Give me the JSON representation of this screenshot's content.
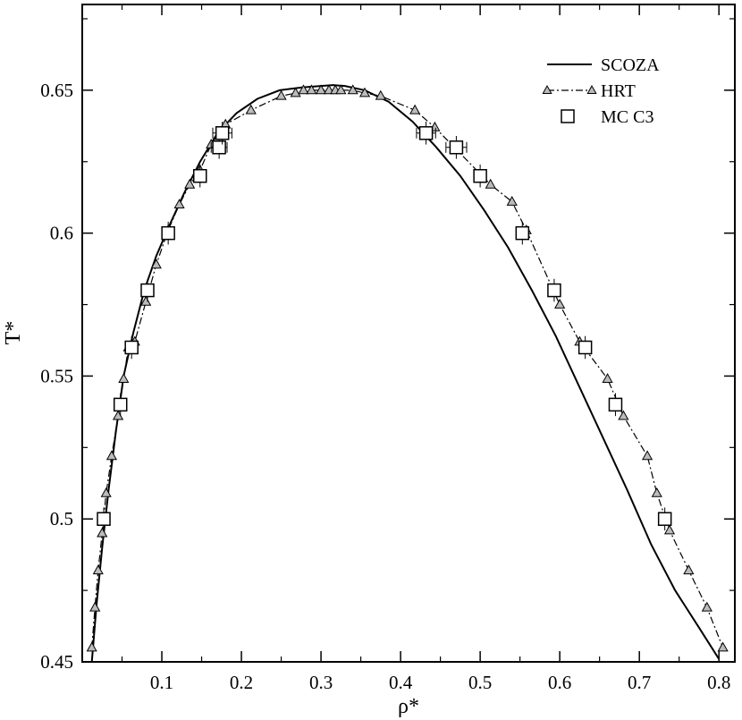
{
  "chart_data": {
    "type": "line",
    "title": "",
    "xlabel": "ρ*",
    "ylabel": "T*",
    "xlim": [
      0.0,
      0.82
    ],
    "ylim": [
      0.45,
      0.68
    ],
    "x_ticks": [
      0.1,
      0.2,
      0.3,
      0.4,
      0.5,
      0.6,
      0.7,
      0.8
    ],
    "x_tick_labels": [
      "0.1",
      "0.2",
      "0.3",
      "0.4",
      "0.5",
      "0.6",
      "0.7",
      "0.8"
    ],
    "y_ticks": [
      0.45,
      0.5,
      0.55,
      0.6,
      0.65
    ],
    "y_tick_labels": [
      "0.45",
      "0.5",
      "0.55",
      "0.6",
      "0.65"
    ],
    "grid": false,
    "legend_position": "top-right",
    "series": [
      {
        "name": "SCOZA",
        "style": "solid-line",
        "x": [
          0.012,
          0.018,
          0.025,
          0.033,
          0.042,
          0.052,
          0.064,
          0.078,
          0.093,
          0.11,
          0.128,
          0.148,
          0.17,
          0.194,
          0.22,
          0.248,
          0.276,
          0.3,
          0.315,
          0.33,
          0.355,
          0.385,
          0.415,
          0.445,
          0.475,
          0.505,
          0.535,
          0.565,
          0.595,
          0.625,
          0.655,
          0.685,
          0.715,
          0.745,
          0.775,
          0.8
        ],
        "y": [
          0.45,
          0.47,
          0.49,
          0.51,
          0.53,
          0.55,
          0.565,
          0.58,
          0.592,
          0.603,
          0.614,
          0.625,
          0.635,
          0.642,
          0.647,
          0.65,
          0.651,
          0.6515,
          0.6518,
          0.6515,
          0.65,
          0.646,
          0.639,
          0.63,
          0.62,
          0.608,
          0.595,
          0.58,
          0.564,
          0.546,
          0.528,
          0.51,
          0.491,
          0.475,
          0.462,
          0.451
        ]
      },
      {
        "name": "HRT",
        "style": "dash-dot-triangles",
        "x": [
          0.012,
          0.016,
          0.02,
          0.025,
          0.03,
          0.037,
          0.045,
          0.052,
          0.058,
          0.066,
          0.08,
          0.093,
          0.108,
          0.122,
          0.135,
          0.148,
          0.162,
          0.18,
          0.212,
          0.25,
          0.268,
          0.278,
          0.288,
          0.3,
          0.31,
          0.318,
          0.325,
          0.34,
          0.355,
          0.375,
          0.418,
          0.443,
          0.513,
          0.54,
          0.558,
          0.6,
          0.625,
          0.66,
          0.68,
          0.71,
          0.722,
          0.738,
          0.762,
          0.785,
          0.805
        ],
        "y": [
          0.455,
          0.469,
          0.482,
          0.495,
          0.509,
          0.522,
          0.536,
          0.549,
          0.56,
          0.562,
          0.576,
          0.589,
          0.601,
          0.61,
          0.617,
          0.622,
          0.631,
          0.638,
          0.643,
          0.648,
          0.649,
          0.65,
          0.65,
          0.65,
          0.65,
          0.65,
          0.65,
          0.65,
          0.649,
          0.648,
          0.643,
          0.637,
          0.617,
          0.611,
          0.601,
          0.575,
          0.562,
          0.549,
          0.536,
          0.522,
          0.509,
          0.496,
          0.482,
          0.469,
          0.455
        ]
      },
      {
        "name": "MC C3",
        "style": "open-squares-with-errorbars",
        "x": [
          0.027,
          0.048,
          0.062,
          0.082,
          0.108,
          0.148,
          0.172,
          0.176,
          0.432,
          0.47,
          0.5,
          0.553,
          0.593,
          0.632,
          0.67,
          0.732
        ],
        "y": [
          0.5,
          0.54,
          0.56,
          0.58,
          0.6,
          0.62,
          0.63,
          0.635,
          0.635,
          0.63,
          0.62,
          0.6,
          0.58,
          0.56,
          0.54,
          0.5
        ],
        "x_err": [
          0.004,
          0.004,
          0.005,
          0.005,
          0.005,
          0.006,
          0.01,
          0.012,
          0.012,
          0.013,
          0.006,
          0.006,
          0.006,
          0.006,
          0.005,
          0.005
        ],
        "y_err": [
          0.004,
          0.004,
          0.004,
          0.004,
          0.004,
          0.004,
          0.004,
          0.004,
          0.004,
          0.004,
          0.004,
          0.004,
          0.004,
          0.004,
          0.004,
          0.004
        ]
      }
    ]
  }
}
